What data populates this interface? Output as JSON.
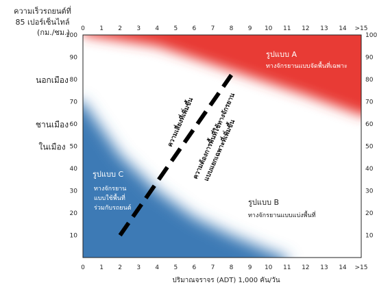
{
  "chart_data": {
    "type": "area",
    "title_y": [
      "ความเร็วรถยนต์ที่",
      "85 เปอร์เซ็นไทล์",
      "(กม./ชม.)"
    ],
    "xlabel": "ปริมาณจราจร (ADT)  1,000 คัน/วัน",
    "xlim": [
      0,
      15
    ],
    "ylim": [
      0,
      100
    ],
    "x_ticks": [
      "0",
      "1",
      "2",
      "3",
      "4",
      "5",
      "6",
      "7",
      "8",
      "9",
      "10",
      "11",
      "12",
      "13",
      "14",
      ">15"
    ],
    "y_ticks": [
      "10",
      "20",
      "30",
      "40",
      "50",
      "60",
      "70",
      "80",
      "90",
      "100"
    ],
    "road_labels": [
      {
        "text": "นอกเมือง",
        "y": 80
      },
      {
        "text": "ชานเมือง",
        "y": 60
      },
      {
        "text": "ในเมือง",
        "y": 50
      }
    ],
    "zones": [
      {
        "name": "A",
        "title": "รูปแบบ A",
        "desc": [
          "ทางจักรยานแบบจัดพื้นที่เฉพาะ"
        ],
        "color": "#e83a35",
        "boundary": [
          [
            0,
            100
          ],
          [
            4,
            95
          ],
          [
            8,
            84
          ],
          [
            12,
            73
          ],
          [
            15,
            64
          ]
        ]
      },
      {
        "name": "B",
        "title": "รูปแบบ B",
        "desc": [
          "ทางจักรยานแบบแบ่งพื้นที่"
        ],
        "color": "#ffffff"
      },
      {
        "name": "C",
        "title": "รูปแบบ C",
        "desc": [
          "ทางจักรยาน",
          "แบบใช้พื้นที่",
          "ร่วมกับรถยนต์"
        ],
        "color": "#3e7ab5",
        "boundary": [
          [
            0,
            70
          ],
          [
            2,
            46
          ],
          [
            4,
            30
          ],
          [
            6,
            18
          ],
          [
            8,
            10
          ],
          [
            10,
            3
          ],
          [
            11,
            0
          ]
        ]
      }
    ],
    "divider": {
      "points": [
        [
          2,
          10
        ],
        [
          8,
          82
        ]
      ],
      "style": "dashed"
    },
    "divider_labels": [
      "ความเสี่ยงที่เพิ่มขึ้น",
      "ความต้องการพื้นที่ใช้ทางจักรยาน",
      "แบบแยกเฉพาะที่เพิ่มขึ้น"
    ]
  },
  "colors": {
    "red": "#e83a35",
    "blue": "#3e7ab5",
    "frame": "#222222"
  }
}
